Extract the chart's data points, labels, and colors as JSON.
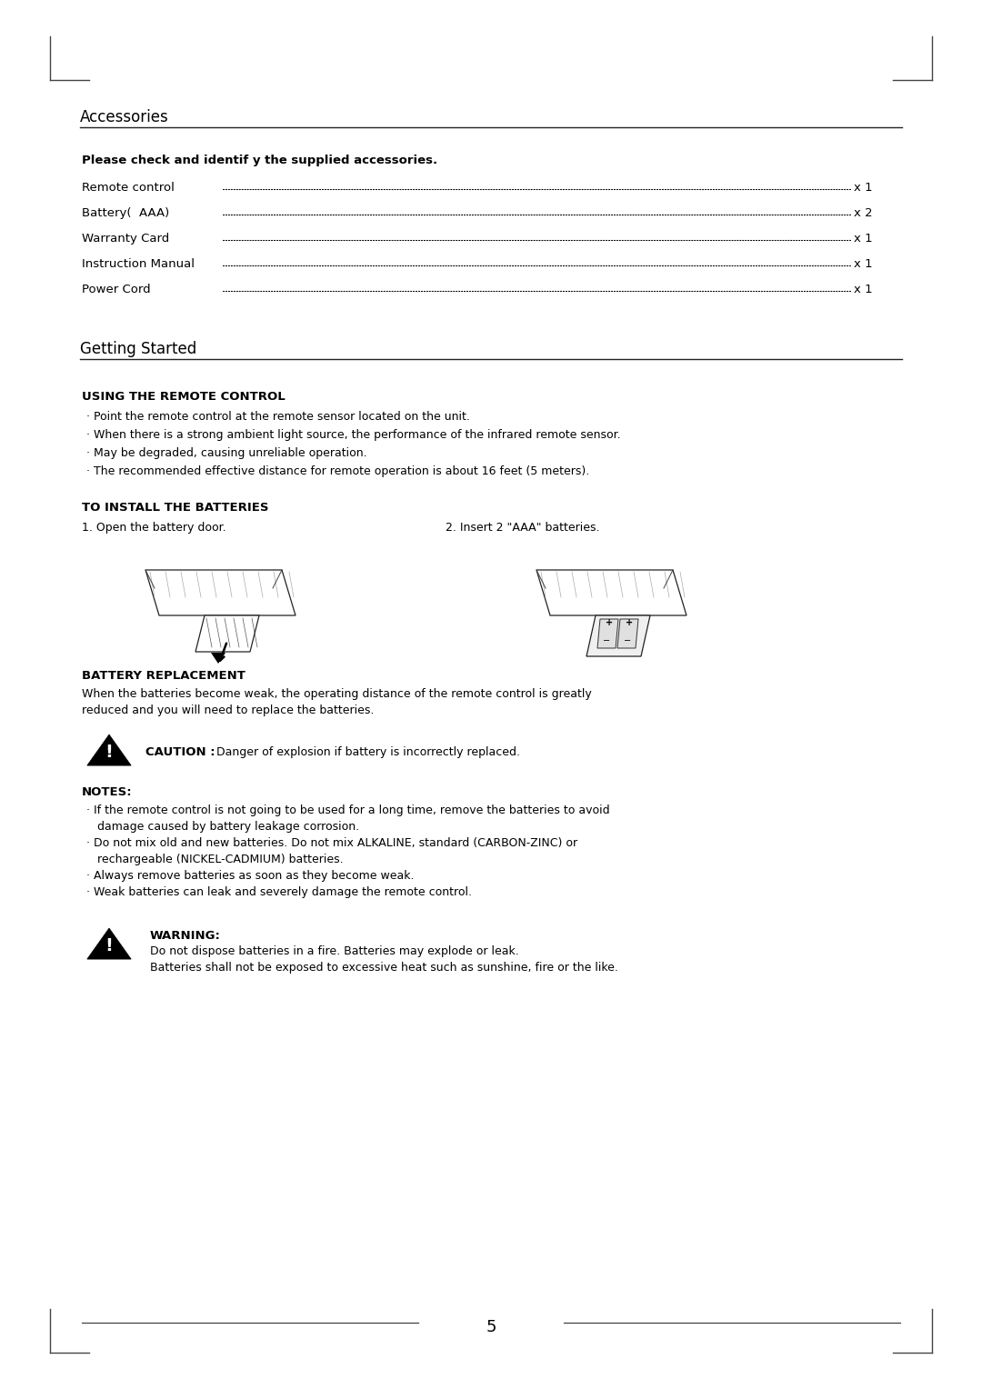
{
  "bg_color": "#ffffff",
  "text_color": "#000000",
  "page_number": "5",
  "section1_title": "Accessories",
  "section2_title": "Getting Started",
  "accessories_bold": "Please check and identif y the supplied accessories.",
  "accessories_items": [
    [
      "Remote control",
      "x 1"
    ],
    [
      "Battery(  AAA)",
      "x 2"
    ],
    [
      "Warranty Card",
      "x 1"
    ],
    [
      "Instruction Manual",
      "x 1"
    ],
    [
      "Power Cord ",
      "x 1"
    ]
  ],
  "using_remote_title": "USING THE REMOTE CONTROL",
  "using_remote_bullets": [
    "· Point the remote control at the remote sensor located on the unit.",
    "· When there is a strong ambient light source, the performance of the infrared remote sensor.",
    "· May be degraded, causing unreliable operation.",
    "· The recommended effective distance for remote operation is about 16 feet (5 meters)."
  ],
  "install_title": "TO INSTALL THE BATTERIES",
  "install_step1": "1. Open the battery door.",
  "install_step2": "2. Insert 2 \"AAA\" batteries.",
  "battery_replace_title": "BATTERY REPLACEMENT",
  "battery_replace_text1": "When the batteries become weak, the operating distance of the remote control is greatly",
  "battery_replace_text2": "reduced and you will need to replace the batteries.",
  "caution_bold": "CAUTION :",
  "caution_text": "Danger of explosion if battery is incorrectly replaced.",
  "notes_title": "NOTES:",
  "notes_bullets": [
    "· If the remote control is not going to be used for a long time, remove the batteries to avoid",
    "   damage caused by battery leakage corrosion.",
    "· Do not mix old and new batteries. Do not mix ALKALINE, standard (CARBON-ZINC) or",
    "   rechargeable (NICKEL-CADMIUM) batteries.",
    "· Always remove batteries as soon as they become weak.",
    "· Weak batteries can leak and severely damage the remote control."
  ],
  "warning_bold": "WARNING:",
  "warning_text1": "Do not dispose batteries in a fire. Batteries may explode or leak.",
  "warning_text2": "Batteries shall not be exposed to excessive heat such as sunshine, fire or the like."
}
